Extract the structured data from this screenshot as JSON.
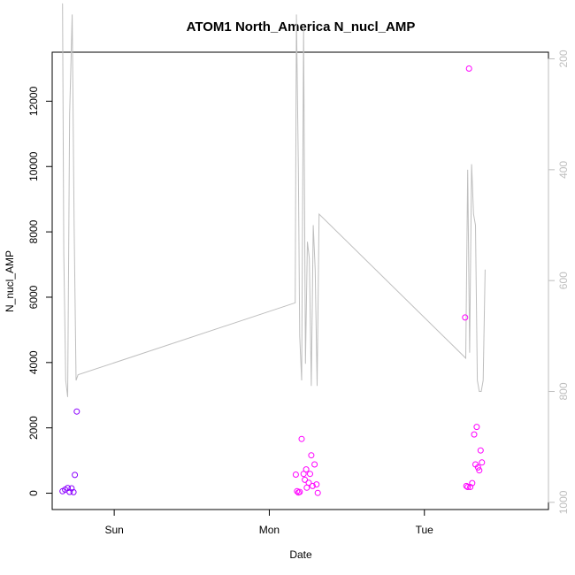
{
  "chart_data": {
    "type": "scatter",
    "title": "ATOM1 North_America N_nucl_AMP",
    "xlabel": "Date",
    "ylabel": "N_nucl_AMP",
    "x_ticks": [
      {
        "label": "Sun",
        "value": 0
      },
      {
        "label": "Mon",
        "value": 24
      },
      {
        "label": "Tue",
        "value": 48
      }
    ],
    "x_units": "hours since Sun 00:00",
    "xlim": [
      -9.6,
      67.2
    ],
    "ylim": [
      -500,
      13500
    ],
    "y_ticks": [
      0,
      2000,
      4000,
      6000,
      8000,
      10000,
      12000
    ],
    "y2_ticks": [
      200,
      400,
      600,
      800,
      1000
    ],
    "y2lim": [
      1013,
      188
    ],
    "y2_reversed": true,
    "grid": false,
    "colors": {
      "line": "#bebebe",
      "early_points": "#8b00ff",
      "late_points": "#ff00ff",
      "right_axis": "#bebebe"
    },
    "line_series": {
      "name": "",
      "axis": "right",
      "points": [
        [
          -8.0,
          100
        ],
        [
          -7.8,
          550
        ],
        [
          -7.5,
          780
        ],
        [
          -7.2,
          810
        ],
        [
          -6.9,
          300
        ],
        [
          -6.5,
          120
        ],
        [
          -6.2,
          500
        ],
        [
          -5.9,
          780
        ],
        [
          -5.6,
          770
        ],
        [
          28.0,
          640
        ],
        [
          28.2,
          120
        ],
        [
          28.5,
          400
        ],
        [
          28.7,
          700
        ],
        [
          29.0,
          780
        ],
        [
          29.3,
          140
        ],
        [
          29.6,
          750
        ],
        [
          29.9,
          530
        ],
        [
          30.2,
          560
        ],
        [
          30.5,
          790
        ],
        [
          30.8,
          500
        ],
        [
          31.1,
          580
        ],
        [
          31.4,
          790
        ],
        [
          31.7,
          480
        ],
        [
          54.4,
          740
        ],
        [
          54.7,
          400
        ],
        [
          55.0,
          730
        ],
        [
          55.3,
          390
        ],
        [
          55.6,
          480
        ],
        [
          55.9,
          500
        ],
        [
          56.2,
          780
        ],
        [
          56.5,
          800
        ],
        [
          56.8,
          800
        ],
        [
          57.1,
          780
        ],
        [
          57.4,
          580
        ]
      ]
    },
    "series": [
      {
        "name": "",
        "color": "#8b00ff",
        "points": [
          [
            -8.0,
            60
          ],
          [
            -7.6,
            110
          ],
          [
            -7.2,
            160
          ],
          [
            -6.9,
            40
          ],
          [
            -6.6,
            150
          ],
          [
            -6.3,
            30
          ],
          [
            -6.1,
            560
          ],
          [
            -5.8,
            2500
          ]
        ]
      },
      {
        "name": "",
        "color": "#ff00ff",
        "points": [
          [
            28.1,
            570
          ],
          [
            28.3,
            60
          ],
          [
            28.5,
            20
          ],
          [
            28.7,
            40
          ],
          [
            29.0,
            1660
          ],
          [
            29.3,
            590
          ],
          [
            29.5,
            410
          ],
          [
            29.7,
            730
          ],
          [
            29.8,
            170
          ],
          [
            30.1,
            320
          ],
          [
            30.3,
            590
          ],
          [
            30.5,
            1160
          ],
          [
            30.7,
            220
          ],
          [
            31.0,
            880
          ],
          [
            31.3,
            270
          ],
          [
            31.5,
            10
          ],
          [
            54.3,
            5380
          ],
          [
            54.5,
            220
          ],
          [
            54.7,
            190
          ],
          [
            54.9,
            13000
          ],
          [
            55.1,
            190
          ],
          [
            55.4,
            310
          ],
          [
            55.7,
            1800
          ],
          [
            55.9,
            880
          ],
          [
            56.1,
            2030
          ],
          [
            56.3,
            790
          ],
          [
            56.5,
            700
          ],
          [
            56.7,
            1310
          ],
          [
            56.9,
            940
          ]
        ]
      }
    ]
  }
}
